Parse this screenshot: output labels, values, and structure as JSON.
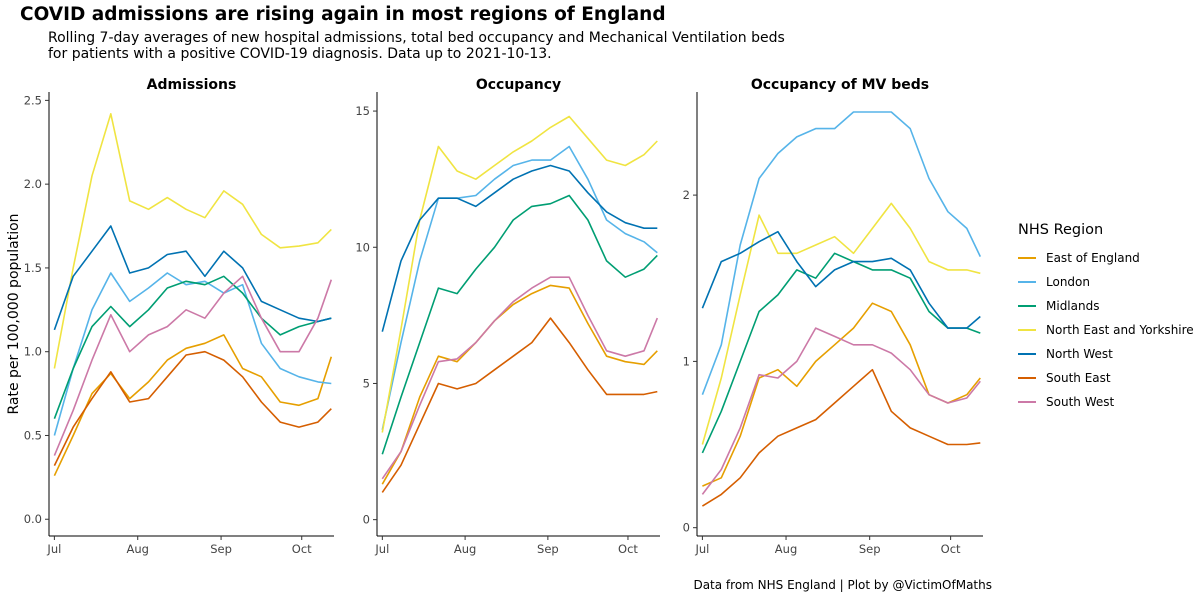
{
  "title": "COVID admissions are rising again in most regions of England",
  "subtitle_lines": [
    "Rolling 7-day averages of new hospital admissions, total bed occupancy and Mechanical Ventilation beds",
    "for patients with a positive COVID-19 diagnosis. Data up to 2021-10-13."
  ],
  "caption": "Data from NHS England | Plot by @VictimOfMaths",
  "legend": {
    "title": "NHS Region",
    "items": [
      {
        "label": "East of England",
        "color": "#E69F00"
      },
      {
        "label": "London",
        "color": "#56B4E9"
      },
      {
        "label": "Midlands",
        "color": "#009E73"
      },
      {
        "label": "North East and Yorkshire",
        "color": "#F0E442"
      },
      {
        "label": "North West",
        "color": "#0072B2"
      },
      {
        "label": "South East",
        "color": "#D55E00"
      },
      {
        "label": "South West",
        "color": "#CC79A7"
      }
    ]
  },
  "chart_data": [
    {
      "type": "line",
      "title": "Admissions",
      "ylabel": "Rate per 100,000 population",
      "xlabel": "",
      "x_tick_labels": [
        "Jul",
        "Aug",
        "Sep",
        "Oct"
      ],
      "x_tick_days": [
        1,
        32,
        63,
        93
      ],
      "xlim": [
        -1,
        105
      ],
      "ylim": [
        -0.1,
        2.55
      ],
      "y_ticks": [
        0.0,
        0.5,
        1.0,
        1.5,
        2.0,
        2.5
      ],
      "y_tick_labels": [
        "0.0",
        "0.5",
        "1.0",
        "1.5",
        "2.0",
        "2.5"
      ],
      "x_days": [
        1,
        8,
        15,
        22,
        29,
        36,
        43,
        50,
        57,
        64,
        71,
        78,
        85,
        92,
        99,
        104
      ],
      "series": [
        {
          "name": "East of England",
          "color": "#E69F00",
          "values": [
            0.26,
            0.5,
            0.75,
            0.87,
            0.72,
            0.82,
            0.95,
            1.02,
            1.05,
            1.1,
            0.9,
            0.85,
            0.7,
            0.68,
            0.72,
            0.97
          ]
        },
        {
          "name": "London",
          "color": "#56B4E9",
          "values": [
            0.5,
            0.9,
            1.25,
            1.47,
            1.3,
            1.38,
            1.47,
            1.4,
            1.42,
            1.35,
            1.4,
            1.05,
            0.9,
            0.85,
            0.82,
            0.81
          ]
        },
        {
          "name": "Midlands",
          "color": "#009E73",
          "values": [
            0.6,
            0.9,
            1.15,
            1.27,
            1.15,
            1.25,
            1.38,
            1.42,
            1.4,
            1.45,
            1.35,
            1.2,
            1.1,
            1.15,
            1.18,
            1.2
          ]
        },
        {
          "name": "North East and Yorkshire",
          "color": "#F0E442",
          "values": [
            0.9,
            1.5,
            2.05,
            2.42,
            1.9,
            1.85,
            1.92,
            1.85,
            1.8,
            1.96,
            1.88,
            1.7,
            1.62,
            1.63,
            1.65,
            1.73
          ]
        },
        {
          "name": "North West",
          "color": "#0072B2",
          "values": [
            1.13,
            1.45,
            1.6,
            1.75,
            1.47,
            1.5,
            1.58,
            1.6,
            1.45,
            1.6,
            1.5,
            1.3,
            1.25,
            1.2,
            1.18,
            1.2
          ]
        },
        {
          "name": "South East",
          "color": "#D55E00",
          "values": [
            0.32,
            0.55,
            0.72,
            0.88,
            0.7,
            0.72,
            0.85,
            0.98,
            1.0,
            0.95,
            0.85,
            0.7,
            0.58,
            0.55,
            0.58,
            0.66
          ]
        },
        {
          "name": "South West",
          "color": "#CC79A7",
          "values": [
            0.38,
            0.65,
            0.95,
            1.22,
            1.0,
            1.1,
            1.15,
            1.25,
            1.2,
            1.35,
            1.45,
            1.2,
            1.0,
            1.0,
            1.2,
            1.43
          ]
        }
      ]
    },
    {
      "type": "line",
      "title": "Occupancy",
      "ylabel": "",
      "xlabel": "",
      "x_tick_labels": [
        "Jul",
        "Aug",
        "Sep",
        "Oct"
      ],
      "x_tick_days": [
        1,
        32,
        63,
        93
      ],
      "xlim": [
        -1,
        105
      ],
      "ylim": [
        -0.6,
        15.7
      ],
      "y_ticks": [
        0,
        5,
        10,
        15
      ],
      "y_tick_labels": [
        "0",
        "5",
        "10",
        "15"
      ],
      "x_days": [
        1,
        8,
        15,
        22,
        29,
        36,
        43,
        50,
        57,
        64,
        71,
        78,
        85,
        92,
        99,
        104
      ],
      "series": [
        {
          "name": "East of England",
          "color": "#E69F00",
          "values": [
            1.3,
            2.5,
            4.5,
            6.0,
            5.8,
            6.5,
            7.3,
            7.9,
            8.3,
            8.6,
            8.5,
            7.2,
            6.0,
            5.8,
            5.7,
            6.2
          ]
        },
        {
          "name": "London",
          "color": "#56B4E9",
          "values": [
            3.3,
            6.5,
            9.5,
            11.8,
            11.8,
            11.9,
            12.5,
            13.0,
            13.2,
            13.2,
            13.7,
            12.5,
            11.0,
            10.5,
            10.2,
            9.8
          ]
        },
        {
          "name": "Midlands",
          "color": "#009E73",
          "values": [
            2.4,
            4.5,
            6.5,
            8.5,
            8.3,
            9.2,
            10.0,
            11.0,
            11.5,
            11.6,
            11.9,
            11.0,
            9.5,
            8.9,
            9.2,
            9.7
          ]
        },
        {
          "name": "North East and Yorkshire",
          "color": "#F0E442",
          "values": [
            3.2,
            7.0,
            11.0,
            13.7,
            12.8,
            12.5,
            13.0,
            13.5,
            13.9,
            14.4,
            14.8,
            14.0,
            13.2,
            13.0,
            13.4,
            13.9
          ]
        },
        {
          "name": "North West",
          "color": "#0072B2",
          "values": [
            6.9,
            9.5,
            11.0,
            11.8,
            11.8,
            11.5,
            12.0,
            12.5,
            12.8,
            13.0,
            12.8,
            12.0,
            11.3,
            10.9,
            10.7,
            10.7
          ]
        },
        {
          "name": "South East",
          "color": "#D55E00",
          "values": [
            1.0,
            2.0,
            3.5,
            5.0,
            4.8,
            5.0,
            5.5,
            6.0,
            6.5,
            7.4,
            6.5,
            5.5,
            4.6,
            4.6,
            4.6,
            4.7
          ]
        },
        {
          "name": "South West",
          "color": "#CC79A7",
          "values": [
            1.5,
            2.5,
            4.2,
            5.8,
            5.9,
            6.5,
            7.3,
            8.0,
            8.5,
            8.9,
            8.9,
            7.5,
            6.2,
            6.0,
            6.2,
            7.4
          ]
        }
      ]
    },
    {
      "type": "line",
      "title": "Occupancy of MV beds",
      "ylabel": "",
      "xlabel": "",
      "x_tick_labels": [
        "Jul",
        "Aug",
        "Sep",
        "Oct"
      ],
      "x_tick_days": [
        1,
        32,
        63,
        93
      ],
      "xlim": [
        -1,
        105
      ],
      "ylim": [
        -0.05,
        2.62
      ],
      "y_ticks": [
        0,
        1,
        2
      ],
      "y_tick_labels": [
        "0",
        "1",
        "2"
      ],
      "x_days": [
        1,
        8,
        15,
        22,
        29,
        36,
        43,
        50,
        57,
        64,
        71,
        78,
        85,
        92,
        99,
        104
      ],
      "series": [
        {
          "name": "East of England",
          "color": "#E69F00",
          "values": [
            0.25,
            0.3,
            0.55,
            0.9,
            0.95,
            0.85,
            1.0,
            1.1,
            1.2,
            1.35,
            1.3,
            1.1,
            0.8,
            0.75,
            0.8,
            0.9
          ]
        },
        {
          "name": "London",
          "color": "#56B4E9",
          "values": [
            0.8,
            1.1,
            1.7,
            2.1,
            2.25,
            2.35,
            2.4,
            2.4,
            2.5,
            2.5,
            2.5,
            2.4,
            2.1,
            1.9,
            1.8,
            1.63
          ]
        },
        {
          "name": "Midlands",
          "color": "#009E73",
          "values": [
            0.45,
            0.7,
            1.0,
            1.3,
            1.4,
            1.55,
            1.5,
            1.65,
            1.6,
            1.55,
            1.55,
            1.5,
            1.3,
            1.2,
            1.2,
            1.17
          ]
        },
        {
          "name": "North East and Yorkshire",
          "color": "#F0E442",
          "values": [
            0.5,
            0.9,
            1.4,
            1.88,
            1.65,
            1.65,
            1.7,
            1.75,
            1.65,
            1.8,
            1.95,
            1.8,
            1.6,
            1.55,
            1.55,
            1.53
          ]
        },
        {
          "name": "North West",
          "color": "#0072B2",
          "values": [
            1.32,
            1.6,
            1.65,
            1.72,
            1.78,
            1.6,
            1.45,
            1.55,
            1.6,
            1.6,
            1.62,
            1.55,
            1.35,
            1.2,
            1.2,
            1.27
          ]
        },
        {
          "name": "South East",
          "color": "#D55E00",
          "values": [
            0.13,
            0.2,
            0.3,
            0.45,
            0.55,
            0.6,
            0.65,
            0.75,
            0.85,
            0.95,
            0.7,
            0.6,
            0.55,
            0.5,
            0.5,
            0.51
          ]
        },
        {
          "name": "South West",
          "color": "#CC79A7",
          "values": [
            0.2,
            0.35,
            0.6,
            0.92,
            0.9,
            1.0,
            1.2,
            1.15,
            1.1,
            1.1,
            1.05,
            0.95,
            0.8,
            0.75,
            0.78,
            0.88
          ]
        }
      ]
    }
  ]
}
